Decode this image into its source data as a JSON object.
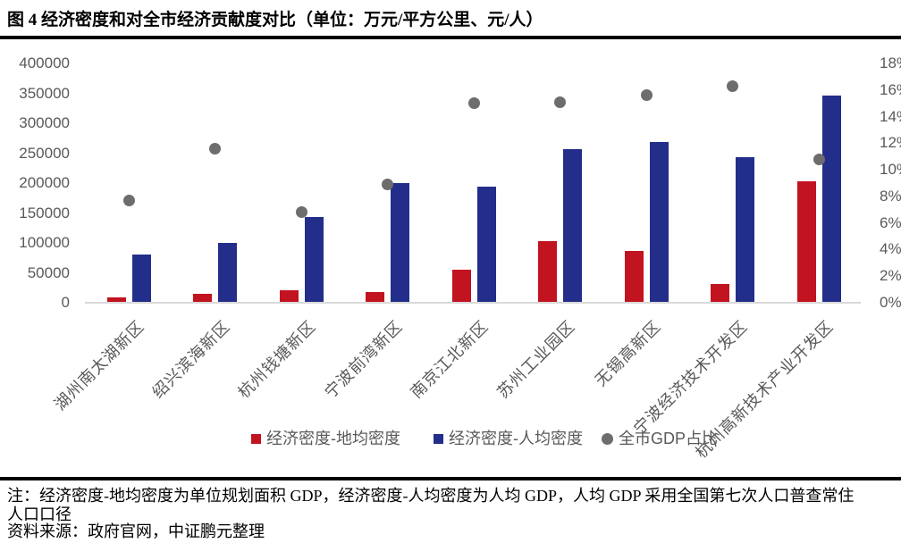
{
  "header": {
    "title": "图 4 经济密度和对全市经济贡献度对比（单位：万元/平方公里、元/人）"
  },
  "chart_data": {
    "type": "bar",
    "subtype": "grouped-bar-with-scatter-overlay",
    "categories": [
      "湖州南太湖新区",
      "绍兴滨海新区",
      "杭州钱塘新区",
      "宁波前湾新区",
      "南京江北新区",
      "苏州工业园区",
      "无锡高新区",
      "宁波经济技术开发区",
      "杭州高新技术产业开发区"
    ],
    "series": [
      {
        "name": "经济密度-地均密度",
        "type": "bar",
        "axis": "left",
        "color": "#C21320",
        "values": [
          9000,
          15000,
          21000,
          18000,
          55000,
          103000,
          87000,
          32000,
          203000
        ]
      },
      {
        "name": "经济密度-人均密度",
        "type": "bar",
        "axis": "left",
        "color": "#232E8B",
        "values": [
          81000,
          100000,
          143000,
          200000,
          194000,
          257000,
          269000,
          244000,
          346000
        ]
      },
      {
        "name": "全市GDP占比",
        "type": "scatter",
        "axis": "right",
        "color": "#6D6D6D",
        "values": [
          7.7,
          11.6,
          6.8,
          8.9,
          15.0,
          15.1,
          15.6,
          16.3,
          10.8
        ]
      }
    ],
    "left_axis": {
      "min": 0,
      "max": 400000,
      "step": 50000,
      "tick_labels": [
        "0",
        "50000",
        "100000",
        "150000",
        "200000",
        "250000",
        "300000",
        "350000",
        "400000"
      ]
    },
    "right_axis": {
      "min": 0,
      "max": 18,
      "step": 2,
      "unit": "%",
      "tick_labels": [
        "0%",
        "2%",
        "4%",
        "6%",
        "8%",
        "10%",
        "12%",
        "14%",
        "16%",
        "18%"
      ]
    },
    "grid": false,
    "legend_position": "bottom",
    "colors": {
      "axis_text": "#595959",
      "baseline": "#D9D9D9"
    }
  },
  "footer": {
    "note_lines": [
      "注：经济密度-地均密度为单位规划面积 GDP，经济密度-人均密度为人均 GDP，人均 GDP 采用全国第七次人口普查常住",
      "人口口径"
    ],
    "source": "资料来源：政府官网，中证鹏元整理"
  }
}
